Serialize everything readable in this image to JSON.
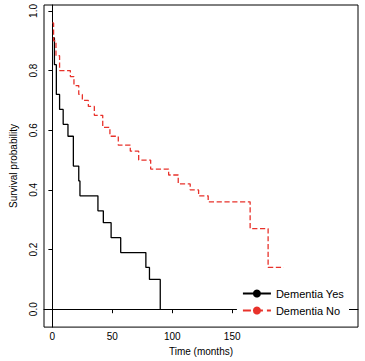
{
  "chart_data": {
    "type": "line",
    "x_label": "Time (months)",
    "y_label": "Survival probability",
    "xlim": [
      -7,
      255
    ],
    "xticks": [
      0,
      50,
      100,
      150
    ],
    "ylim": [
      -0.06,
      1.02
    ],
    "yticks": [
      {
        "value": 0,
        "label": "0.0"
      },
      {
        "value": 0.2,
        "label": "0.2"
      },
      {
        "value": 0.4,
        "label": "0.4"
      },
      {
        "value": 0.6,
        "label": "0.6"
      },
      {
        "value": 0.8,
        "label": "0.8"
      },
      {
        "value": 1,
        "label": "1.0"
      }
    ],
    "grid": false,
    "legend": "bottom-right",
    "series": [
      {
        "name": "Dementia Yes",
        "color": "#000000",
        "line_style": "solid",
        "x": [
          0,
          1.7,
          3.3,
          6,
          9,
          13,
          17.5,
          22,
          23,
          38,
          42.5,
          49,
          57,
          78,
          81,
          90
        ],
        "values": [
          0.91,
          0.82,
          0.72,
          0.67,
          0.62,
          0.58,
          0.48,
          0.43,
          0.38,
          0.33,
          0.29,
          0.24,
          0.19,
          0.14,
          0.1,
          0
        ]
      },
      {
        "name": "Dementia No",
        "color": "#e8322b",
        "line_style": "dashed",
        "x": [
          0,
          1,
          3,
          6,
          15,
          18,
          22,
          25,
          30,
          35,
          42,
          48,
          55,
          65,
          72,
          82,
          97,
          105,
          115,
          122,
          130,
          165,
          180,
          193
        ],
        "values": [
          0.96,
          0.9,
          0.85,
          0.8,
          0.78,
          0.75,
          0.72,
          0.7,
          0.68,
          0.65,
          0.61,
          0.58,
          0.55,
          0.53,
          0.5,
          0.47,
          0.45,
          0.42,
          0.4,
          0.38,
          0.36,
          0.27,
          0.14,
          0.14
        ]
      }
    ]
  }
}
